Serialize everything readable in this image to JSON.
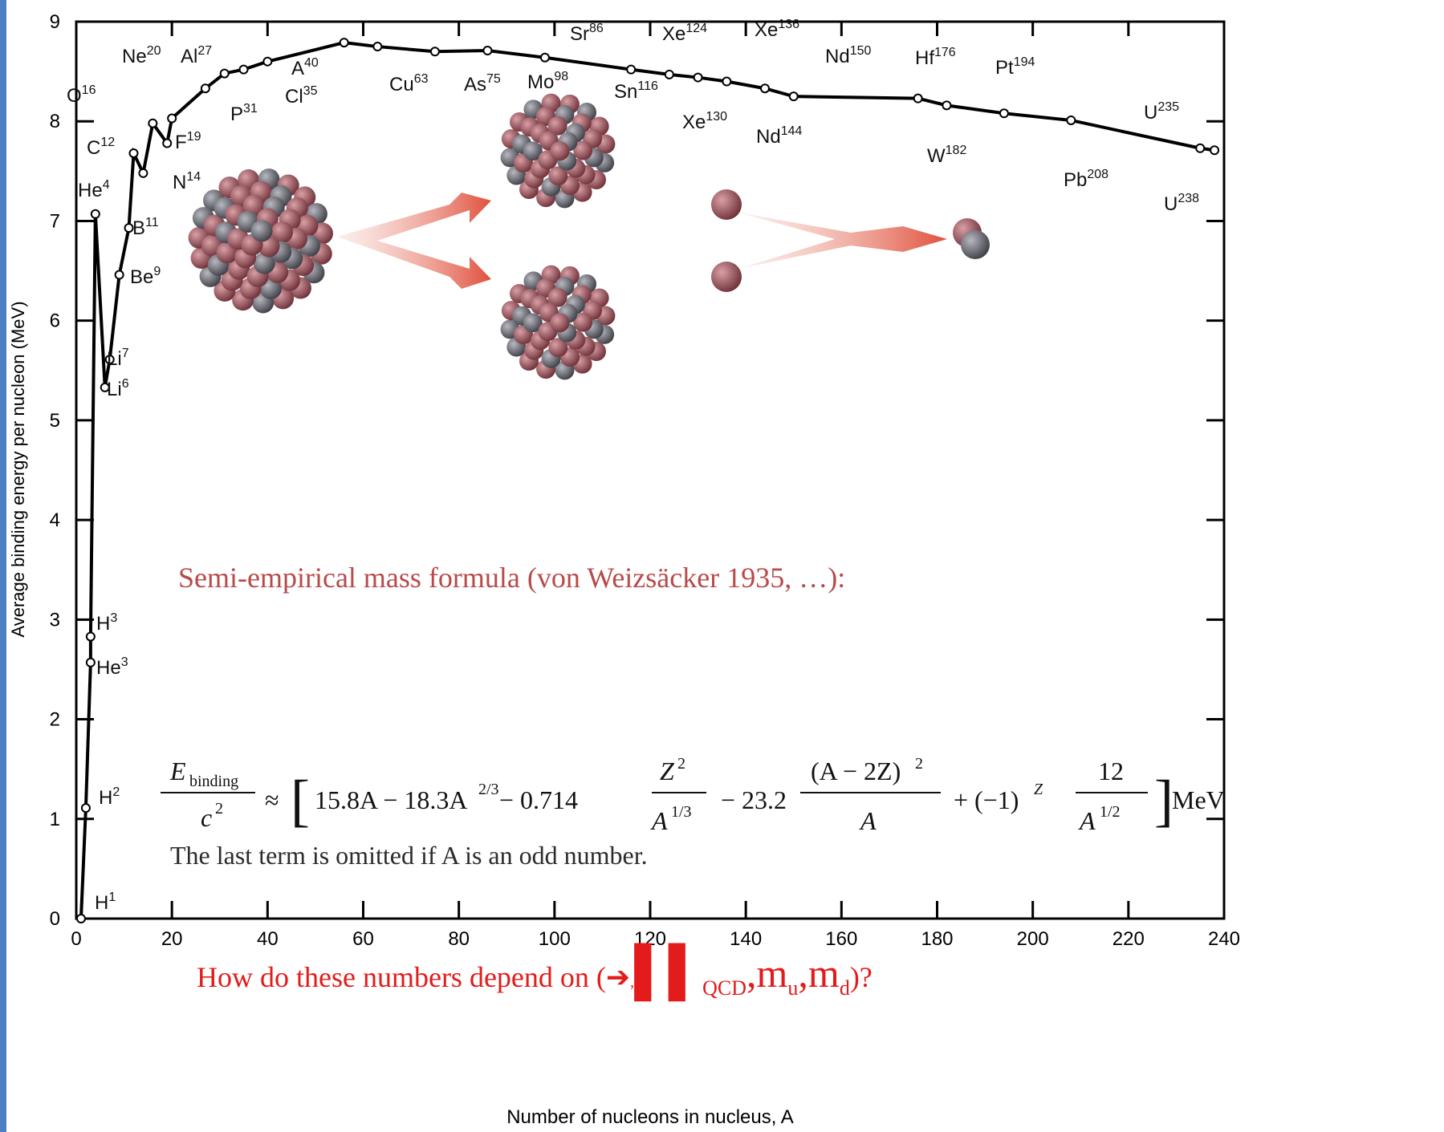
{
  "chart_data": {
    "type": "line",
    "title": null,
    "x_label": "Number of nucleons in nucleus, A",
    "y_label": "Average binding energy per nucleon (MeV)",
    "xlim": [
      0,
      240
    ],
    "xticks": [
      0,
      20,
      40,
      60,
      80,
      100,
      120,
      140,
      160,
      180,
      200,
      220,
      240
    ],
    "ylim": [
      0,
      9
    ],
    "yticks": [
      0,
      1,
      2,
      3,
      4,
      5,
      6,
      7,
      8,
      9
    ],
    "color": "#000000",
    "x": [
      1,
      2,
      3,
      3,
      4,
      6,
      7,
      9,
      11,
      12,
      14,
      16,
      19,
      20,
      27,
      31,
      35,
      40,
      56,
      63,
      75,
      86,
      98,
      116,
      124,
      130,
      136,
      144,
      150,
      176,
      182,
      194,
      208,
      235,
      238
    ],
    "values": [
      0,
      1.11,
      2.57,
      2.83,
      7.07,
      5.33,
      5.61,
      6.46,
      6.93,
      7.68,
      7.48,
      7.98,
      7.78,
      8.03,
      8.33,
      8.48,
      8.52,
      8.6,
      8.79,
      8.75,
      8.7,
      8.71,
      8.64,
      8.52,
      8.47,
      8.44,
      8.4,
      8.33,
      8.25,
      8.23,
      8.16,
      8.08,
      8.01,
      7.73,
      7.71
    ],
    "point_labels": [
      {
        "symbol": "H",
        "mass": "1"
      },
      {
        "symbol": "H",
        "mass": "2"
      },
      {
        "symbol": "He",
        "mass": "3"
      },
      {
        "symbol": "H",
        "mass": "3"
      },
      {
        "symbol": "He",
        "mass": "4"
      },
      {
        "symbol": "Li",
        "mass": "6"
      },
      {
        "symbol": "Li",
        "mass": "7"
      },
      {
        "symbol": "Be",
        "mass": "9"
      },
      {
        "symbol": "B",
        "mass": "11"
      },
      {
        "symbol": "C",
        "mass": "12"
      },
      {
        "symbol": "N",
        "mass": "14"
      },
      {
        "symbol": "O",
        "mass": "16"
      },
      {
        "symbol": "F",
        "mass": "19"
      },
      {
        "symbol": "Ne",
        "mass": "20"
      },
      {
        "symbol": "Al",
        "mass": "27"
      },
      {
        "symbol": "P",
        "mass": "31"
      },
      {
        "symbol": "Cl",
        "mass": "35"
      },
      {
        "symbol": "A",
        "mass": "40"
      },
      null,
      {
        "symbol": "Cu",
        "mass": "63"
      },
      {
        "symbol": "As",
        "mass": "75"
      },
      {
        "symbol": "Sr",
        "mass": "86"
      },
      {
        "symbol": "Mo",
        "mass": "98"
      },
      {
        "symbol": "Sn",
        "mass": "116"
      },
      {
        "symbol": "Xe",
        "mass": "124"
      },
      {
        "symbol": "Xe",
        "mass": "130"
      },
      {
        "symbol": "Xe",
        "mass": "136"
      },
      {
        "symbol": "Nd",
        "mass": "144"
      },
      {
        "symbol": "Nd",
        "mass": "150"
      },
      {
        "symbol": "Hf",
        "mass": "176"
      },
      {
        "symbol": "W",
        "mass": "182"
      },
      {
        "symbol": "Pt",
        "mass": "194"
      },
      {
        "symbol": "Pb",
        "mass": "208"
      },
      {
        "symbol": "U",
        "mass": "235"
      },
      {
        "symbol": "U",
        "mass": "238"
      }
    ],
    "annotations": {
      "formula_title": "Semi-empirical mass formula (von Weizsäcker 1935, …):",
      "formula": [
        "E",
        "binding",
        "c",
        "2",
        "≈",
        "[",
        "15.8A − 18.3A",
        "2/3",
        "− 0.714",
        "Z",
        "2",
        "A",
        "1/3",
        "− 23.2",
        "(A − 2Z)",
        "2",
        "A",
        "+ (−1)",
        "Z",
        "12",
        "A",
        "1/2",
        "]",
        "MeV"
      ],
      "note": "The last term is omitted if A is an odd number.",
      "question": [
        "How do these numbers depend on (",
        "➔",
        ",",
        "▌▌",
        "QCD",
        ",m",
        "u",
        ",m",
        "d",
        ")?"
      ]
    }
  }
}
